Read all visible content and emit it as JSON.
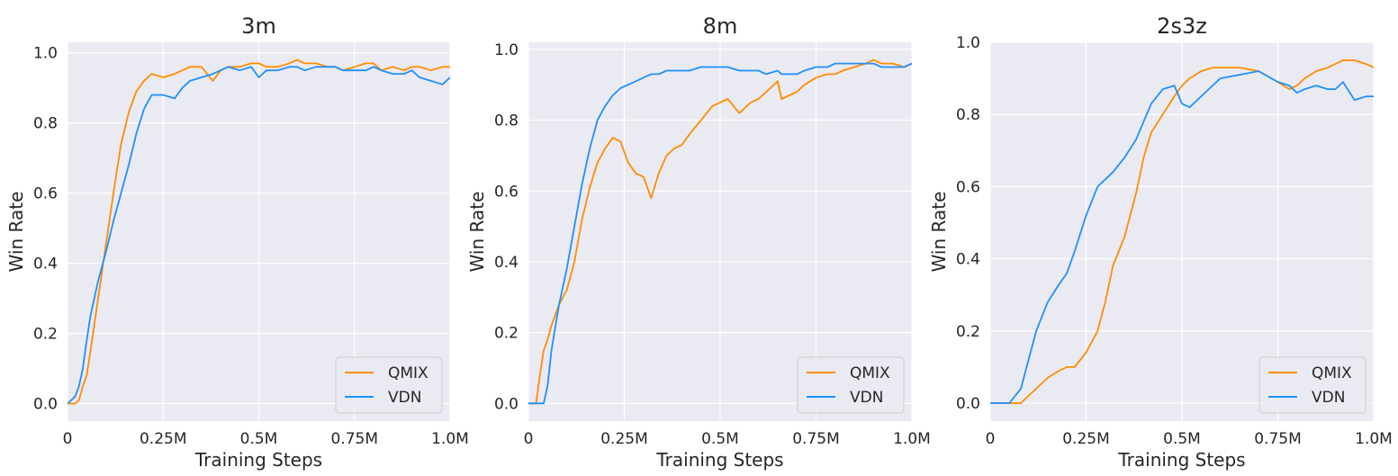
{
  "colors": {
    "QMIX": "#ff8c00",
    "VDN": "#1e90ff",
    "plot_bg": "#eaeaf2",
    "grid": "#ffffff"
  },
  "chart_data": [
    {
      "type": "line",
      "title": "3m",
      "xlabel": "Training Steps",
      "ylabel": "Win Rate",
      "xlim": [
        0,
        1000000
      ],
      "ylim": [
        -0.05,
        1.03
      ],
      "xticks": [
        0,
        250000,
        500000,
        750000,
        1000000
      ],
      "xtick_labels": [
        "0",
        "0.25M",
        "0.5M",
        "0.75M",
        "1.0M"
      ],
      "yticks": [
        0,
        0.2,
        0.4,
        0.6,
        0.8,
        1.0
      ],
      "ytick_labels": [
        "0.0",
        "0.2",
        "0.4",
        "0.6",
        "0.8",
        "1.0"
      ],
      "grid": true,
      "legend": "lower right",
      "x": [
        0,
        20000,
        30000,
        40000,
        50000,
        60000,
        80000,
        100000,
        120000,
        140000,
        160000,
        180000,
        200000,
        220000,
        250000,
        280000,
        300000,
        320000,
        350000,
        380000,
        400000,
        420000,
        450000,
        480000,
        500000,
        520000,
        550000,
        580000,
        600000,
        620000,
        650000,
        680000,
        700000,
        720000,
        750000,
        780000,
        800000,
        820000,
        850000,
        880000,
        900000,
        920000,
        950000,
        980000,
        1000000
      ],
      "series": [
        {
          "name": "QMIX",
          "values": [
            0,
            0,
            0.01,
            0.05,
            0.08,
            0.15,
            0.3,
            0.45,
            0.6,
            0.74,
            0.83,
            0.89,
            0.92,
            0.94,
            0.93,
            0.94,
            0.95,
            0.96,
            0.96,
            0.92,
            0.95,
            0.96,
            0.96,
            0.97,
            0.97,
            0.96,
            0.96,
            0.97,
            0.98,
            0.97,
            0.97,
            0.96,
            0.96,
            0.95,
            0.96,
            0.97,
            0.97,
            0.95,
            0.96,
            0.95,
            0.96,
            0.96,
            0.95,
            0.96,
            0.96
          ]
        },
        {
          "name": "VDN",
          "values": [
            0,
            0.02,
            0.05,
            0.1,
            0.18,
            0.25,
            0.35,
            0.43,
            0.52,
            0.6,
            0.68,
            0.77,
            0.84,
            0.88,
            0.88,
            0.87,
            0.9,
            0.92,
            0.93,
            0.94,
            0.95,
            0.96,
            0.95,
            0.96,
            0.93,
            0.95,
            0.95,
            0.96,
            0.96,
            0.95,
            0.96,
            0.96,
            0.96,
            0.95,
            0.95,
            0.95,
            0.96,
            0.95,
            0.94,
            0.94,
            0.95,
            0.93,
            0.92,
            0.91,
            0.93
          ]
        }
      ]
    },
    {
      "type": "line",
      "title": "8m",
      "xlabel": "Training Steps",
      "ylabel": "Win Rate",
      "xlim": [
        0,
        1000000
      ],
      "ylim": [
        -0.05,
        1.02
      ],
      "xticks": [
        0,
        250000,
        500000,
        750000,
        1000000
      ],
      "xtick_labels": [
        "0",
        "0.25M",
        "0.5M",
        "0.75M",
        "1.0M"
      ],
      "yticks": [
        0,
        0.2,
        0.4,
        0.6,
        0.8,
        1.0
      ],
      "ytick_labels": [
        "0.0",
        "0.2",
        "0.4",
        "0.6",
        "0.8",
        "1.0"
      ],
      "grid": true,
      "legend": "lower right",
      "x": [
        0,
        20000,
        30000,
        40000,
        50000,
        60000,
        80000,
        100000,
        120000,
        140000,
        160000,
        180000,
        200000,
        220000,
        240000,
        260000,
        280000,
        300000,
        320000,
        340000,
        360000,
        380000,
        400000,
        420000,
        450000,
        480000,
        500000,
        520000,
        550000,
        580000,
        600000,
        620000,
        650000,
        660000,
        680000,
        700000,
        720000,
        750000,
        780000,
        800000,
        820000,
        850000,
        880000,
        900000,
        920000,
        950000,
        980000,
        1000000
      ],
      "series": [
        {
          "name": "QMIX",
          "values": [
            0,
            0,
            0.08,
            0.15,
            0.18,
            0.22,
            0.28,
            0.32,
            0.4,
            0.52,
            0.61,
            0.68,
            0.72,
            0.75,
            0.74,
            0.68,
            0.65,
            0.64,
            0.58,
            0.65,
            0.7,
            0.72,
            0.73,
            0.76,
            0.8,
            0.84,
            0.85,
            0.86,
            0.82,
            0.85,
            0.86,
            0.88,
            0.91,
            0.86,
            0.87,
            0.88,
            0.9,
            0.92,
            0.93,
            0.93,
            0.94,
            0.95,
            0.96,
            0.97,
            0.96,
            0.96,
            0.95,
            0.96
          ]
        },
        {
          "name": "VDN",
          "values": [
            0,
            0,
            0,
            0,
            0.05,
            0.15,
            0.28,
            0.38,
            0.5,
            0.62,
            0.72,
            0.8,
            0.84,
            0.87,
            0.89,
            0.9,
            0.91,
            0.92,
            0.93,
            0.93,
            0.94,
            0.94,
            0.94,
            0.94,
            0.95,
            0.95,
            0.95,
            0.95,
            0.94,
            0.94,
            0.94,
            0.93,
            0.94,
            0.93,
            0.93,
            0.93,
            0.94,
            0.95,
            0.95,
            0.96,
            0.96,
            0.96,
            0.96,
            0.96,
            0.95,
            0.95,
            0.95,
            0.96
          ]
        }
      ]
    },
    {
      "type": "line",
      "title": "2s3z",
      "xlabel": "Training Steps",
      "ylabel": "Win Rate",
      "xlim": [
        0,
        1000000
      ],
      "ylim": [
        -0.05,
        1.0
      ],
      "xticks": [
        0,
        250000,
        500000,
        750000,
        1000000
      ],
      "xtick_labels": [
        "0",
        "0.25M",
        "0.5M",
        "0.75M",
        "1.0M"
      ],
      "yticks": [
        0,
        0.2,
        0.4,
        0.6,
        0.8,
        1.0
      ],
      "ytick_labels": [
        "0.0",
        "0.2",
        "0.4",
        "0.6",
        "0.8",
        "1.0"
      ],
      "grid": true,
      "legend": "lower right",
      "x": [
        0,
        50000,
        80000,
        100000,
        120000,
        150000,
        180000,
        200000,
        220000,
        250000,
        280000,
        300000,
        320000,
        350000,
        380000,
        400000,
        420000,
        450000,
        480000,
        500000,
        520000,
        550000,
        580000,
        600000,
        650000,
        700000,
        750000,
        780000,
        800000,
        820000,
        850000,
        880000,
        900000,
        920000,
        950000,
        980000,
        1000000
      ],
      "series": [
        {
          "name": "QMIX",
          "values": [
            0,
            0,
            0,
            0.02,
            0.04,
            0.07,
            0.09,
            0.1,
            0.1,
            0.14,
            0.2,
            0.28,
            0.38,
            0.46,
            0.58,
            0.68,
            0.75,
            0.8,
            0.85,
            0.88,
            0.9,
            0.92,
            0.93,
            0.93,
            0.93,
            0.92,
            0.89,
            0.87,
            0.88,
            0.9,
            0.92,
            0.93,
            0.94,
            0.95,
            0.95,
            0.94,
            0.93
          ]
        },
        {
          "name": "VDN",
          "values": [
            0,
            0,
            0.04,
            0.12,
            0.2,
            0.28,
            0.33,
            0.36,
            0.42,
            0.52,
            0.6,
            0.62,
            0.64,
            0.68,
            0.73,
            0.78,
            0.83,
            0.87,
            0.88,
            0.83,
            0.82,
            0.85,
            0.88,
            0.9,
            0.91,
            0.92,
            0.89,
            0.88,
            0.86,
            0.87,
            0.88,
            0.87,
            0.87,
            0.89,
            0.84,
            0.85,
            0.85
          ]
        }
      ]
    }
  ]
}
